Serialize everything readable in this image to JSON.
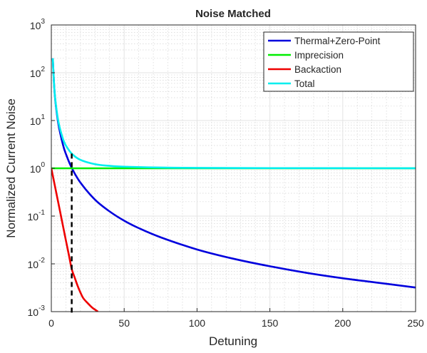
{
  "chart_data": {
    "type": "line",
    "title": "Noise Matched",
    "xlabel": "Detuning",
    "ylabel": "Normalized Current Noise",
    "xlim": [
      0,
      250
    ],
    "ylim": [
      0.001,
      1000
    ],
    "yscale": "log",
    "grid": true,
    "minor_grid": true,
    "legend_position": "top-right",
    "x_ticks": [
      "0",
      "50",
      "100",
      "150",
      "200",
      "250"
    ],
    "y_ticks": [
      {
        "base": "10",
        "exp": "-3"
      },
      {
        "base": "10",
        "exp": "-2"
      },
      {
        "base": "10",
        "exp": "-1"
      },
      {
        "base": "10",
        "exp": "0"
      },
      {
        "base": "10",
        "exp": "1"
      },
      {
        "base": "10",
        "exp": "2"
      },
      {
        "base": "10",
        "exp": "3"
      }
    ],
    "series": [
      {
        "name": "Thermal+Zero-Point",
        "color": "#0000dd",
        "x": [
          1,
          2,
          3,
          5,
          8,
          10,
          14,
          20,
          30,
          40,
          50,
          60,
          75,
          100,
          125,
          150,
          175,
          200,
          225,
          250
        ],
        "y": [
          200,
          50,
          22,
          8,
          3.1,
          2.0,
          1.02,
          0.5,
          0.22,
          0.125,
          0.08,
          0.056,
          0.036,
          0.02,
          0.0128,
          0.0089,
          0.0065,
          0.005,
          0.004,
          0.0032
        ]
      },
      {
        "name": "Imprecision",
        "color": "#00ee00",
        "x": [
          0,
          250
        ],
        "y": [
          1,
          1
        ]
      },
      {
        "name": "Backaction",
        "color": "#ee0000",
        "x": [
          0,
          2,
          4,
          6,
          8,
          10,
          12,
          14,
          16,
          18,
          20,
          22,
          25,
          28,
          30,
          32
        ],
        "y": [
          1,
          0.5,
          0.25,
          0.125,
          0.062,
          0.031,
          0.0156,
          0.0078,
          0.0052,
          0.0035,
          0.0025,
          0.0019,
          0.0015,
          0.00122,
          0.0011,
          0.001
        ]
      },
      {
        "name": "Total",
        "color": "#00eeee",
        "x": [
          1,
          2,
          3,
          5,
          8,
          10,
          14,
          20,
          30,
          40,
          50,
          75,
          100,
          150,
          200,
          250
        ],
        "y": [
          200,
          50,
          23,
          9,
          4.1,
          3.0,
          2.03,
          1.5,
          1.22,
          1.125,
          1.08,
          1.036,
          1.02,
          1.009,
          1.005,
          1.0032
        ]
      }
    ],
    "annotations": [
      {
        "type": "dashed-vertical-line",
        "x": 14,
        "y_from": 0.001,
        "y_to": 2.03,
        "color": "#000000"
      }
    ]
  }
}
